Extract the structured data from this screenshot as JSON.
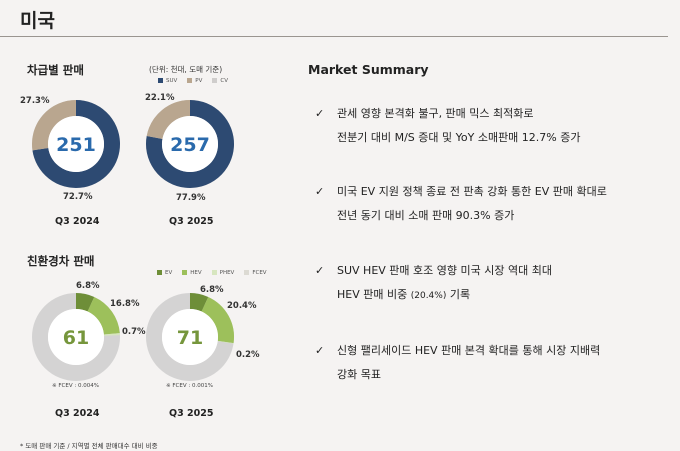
{
  "title": "미국",
  "vehicle_sales": {
    "title": "차급별 판매",
    "unit": "(단위: 천대, 도매 기준)",
    "legend": [
      {
        "label": "SUV",
        "color": "#2d4a72"
      },
      {
        "label": "PV",
        "color": "#b9a68f"
      },
      {
        "label": "CV",
        "color": "#cfcdcc"
      }
    ],
    "charts": [
      {
        "period": "Q3 2024",
        "total": "251",
        "segments": [
          {
            "name": "SUV",
            "value": 72.7,
            "label": "72.7%"
          },
          {
            "name": "PV",
            "value": 27.3,
            "label": "27.3%"
          }
        ]
      },
      {
        "period": "Q3 2025",
        "total": "257",
        "segments": [
          {
            "name": "SUV",
            "value": 77.9,
            "label": "77.9%"
          },
          {
            "name": "PV",
            "value": 22.1,
            "label": "22.1%"
          }
        ]
      }
    ]
  },
  "eco_sales": {
    "title": "친환경차 판매",
    "legend": [
      {
        "label": "EV",
        "color": "#6e8e38"
      },
      {
        "label": "HEV",
        "color": "#9dc05b"
      },
      {
        "label": "PHEV",
        "color": "#d7e6bf"
      },
      {
        "label": "FCEV",
        "color": "#dcdad3"
      }
    ],
    "charts": [
      {
        "period": "Q3 2024",
        "total": "61",
        "note": "※ FCEV : 0.004%",
        "segments": [
          {
            "name": "EV",
            "value": 6.8,
            "label": "6.8%"
          },
          {
            "name": "HEV",
            "value": 16.8,
            "label": "16.8%"
          },
          {
            "name": "PHEV",
            "value": 0.7,
            "label": "0.7%"
          }
        ]
      },
      {
        "period": "Q3 2025",
        "total": "71",
        "note": "※ FCEV : 0.001%",
        "segments": [
          {
            "name": "EV",
            "value": 6.8,
            "label": "6.8%"
          },
          {
            "name": "HEV",
            "value": 20.4,
            "label": "20.4%"
          },
          {
            "name": "PHEV",
            "value": 0.2,
            "label": "0.2%"
          }
        ]
      }
    ]
  },
  "footnote": "* 도매 판매 기준 / 지역별 전체 판매대수 대비 비중",
  "market_summary": {
    "title": "Market Summary",
    "check": "✓",
    "bullets": [
      {
        "line1": "관세 영향 본격화 불구, 판매 믹스 최적화로",
        "line2": "전분기 대비 M/S 증대 및 YoY 소매판매 12.7% 증가"
      },
      {
        "line1": "미국 EV 지원 정책 종료 전 판촉 강화 통한 EV 판매 확대로",
        "line2": "전년 동기 대비 소매 판매 90.3% 증가"
      },
      {
        "line1": "SUV HEV 판매 호조 영향 미국 시장 역대 최대",
        "line2a": "HEV 판매 비중",
        "line2b": "(20.4%)",
        "line2c": " 기록"
      },
      {
        "line1": "신형 팰리세이드 HEV 판매 본격 확대를 통해 시장 지배력",
        "line2": "강화 목표"
      }
    ]
  }
}
